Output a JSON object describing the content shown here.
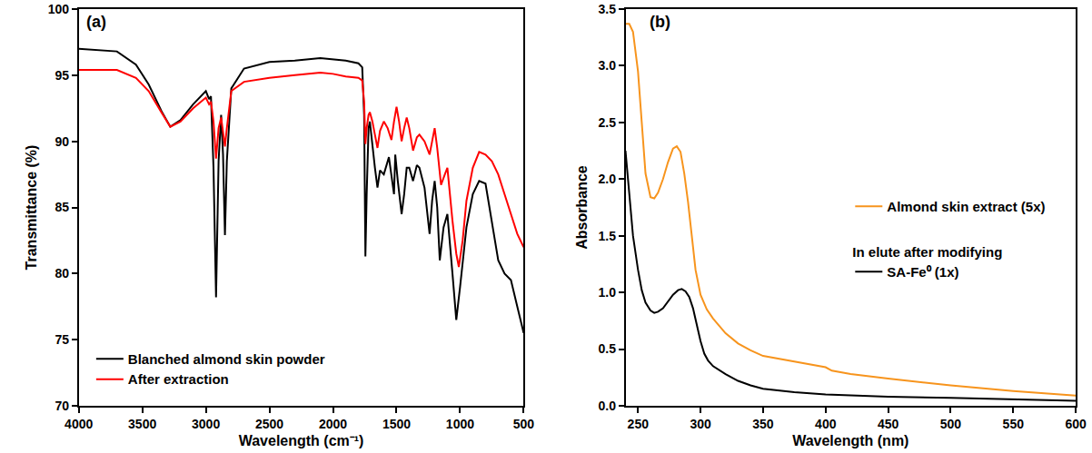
{
  "chart_data": [
    {
      "type": "line",
      "title": "(a)",
      "x_label": "Wavelength (cm⁻¹)",
      "y_label": "Transmittance (%)",
      "xlim": [
        4000,
        500
      ],
      "xticks": [
        4000,
        3500,
        3000,
        2500,
        2000,
        1500,
        1000,
        500
      ],
      "ylim": [
        70,
        100
      ],
      "yticks": [
        70,
        75,
        80,
        85,
        90,
        95,
        100
      ],
      "legend": "bottom left",
      "grid": false,
      "series": [
        {
          "name": "Blanched almond skin powder",
          "color": "#000000",
          "x": [
            4000,
            3850,
            3700,
            3550,
            3450,
            3350,
            3280,
            3200,
            3100,
            3000,
            2975,
            2960,
            2940,
            2920,
            2900,
            2880,
            2865,
            2850,
            2835,
            2800,
            2700,
            2500,
            2300,
            2100,
            2000,
            1900,
            1800,
            1770,
            1755,
            1745,
            1735,
            1720,
            1710,
            1690,
            1670,
            1650,
            1630,
            1600,
            1560,
            1520,
            1510,
            1490,
            1460,
            1440,
            1420,
            1400,
            1370,
            1340,
            1320,
            1280,
            1240,
            1220,
            1200,
            1180,
            1160,
            1130,
            1100,
            1060,
            1030,
            1000,
            950,
            900,
            850,
            800,
            750,
            700,
            650,
            600,
            550,
            500
          ],
          "values": [
            97.0,
            96.9,
            96.8,
            95.8,
            94.3,
            92.3,
            91.1,
            91.6,
            92.8,
            93.8,
            93.2,
            93.4,
            88.0,
            78.2,
            88.5,
            92.0,
            89.0,
            82.9,
            88.5,
            94.0,
            95.5,
            96.0,
            96.1,
            96.3,
            96.2,
            96.1,
            95.9,
            95.6,
            92.0,
            81.3,
            86.0,
            91.0,
            91.5,
            89.5,
            88.0,
            86.5,
            87.8,
            87.5,
            88.8,
            86.0,
            89.0,
            87.0,
            84.5,
            86.0,
            88.0,
            88.0,
            87.0,
            88.2,
            88.0,
            86.5,
            83.0,
            85.5,
            87.0,
            85.0,
            81.0,
            83.5,
            84.5,
            80.0,
            76.5,
            79.0,
            83.5,
            86.0,
            87.0,
            86.8,
            84.0,
            81.0,
            80.0,
            79.5,
            77.5,
            75.5
          ]
        },
        {
          "name": "After extraction",
          "color": "#ff0000",
          "x": [
            4000,
            3850,
            3700,
            3550,
            3450,
            3350,
            3280,
            3200,
            3100,
            3000,
            2975,
            2960,
            2940,
            2920,
            2900,
            2880,
            2865,
            2850,
            2835,
            2800,
            2700,
            2500,
            2300,
            2100,
            2000,
            1900,
            1800,
            1770,
            1755,
            1745,
            1735,
            1720,
            1710,
            1690,
            1670,
            1650,
            1630,
            1600,
            1570,
            1540,
            1520,
            1500,
            1480,
            1460,
            1440,
            1420,
            1400,
            1370,
            1340,
            1320,
            1280,
            1240,
            1220,
            1200,
            1180,
            1150,
            1120,
            1100,
            1060,
            1030,
            1010,
            980,
            950,
            900,
            850,
            800,
            750,
            700,
            650,
            600,
            550,
            500
          ],
          "values": [
            95.4,
            95.4,
            95.4,
            94.8,
            93.8,
            92.2,
            91.1,
            91.5,
            92.5,
            93.3,
            92.8,
            93.0,
            91.5,
            88.7,
            91.0,
            91.8,
            90.8,
            89.6,
            91.0,
            93.8,
            94.5,
            94.8,
            95.0,
            95.2,
            95.1,
            94.9,
            94.8,
            94.6,
            93.0,
            89.8,
            91.0,
            92.0,
            92.2,
            91.5,
            90.5,
            89.5,
            90.8,
            91.5,
            91.0,
            90.1,
            91.5,
            92.6,
            91.5,
            90.0,
            91.0,
            91.8,
            91.0,
            89.3,
            90.3,
            90.5,
            90.0,
            89.0,
            90.0,
            91.0,
            89.5,
            86.7,
            87.5,
            88.0,
            84.0,
            81.5,
            80.5,
            82.5,
            85.5,
            88.0,
            89.2,
            89.0,
            88.5,
            87.5,
            86.0,
            84.5,
            83.0,
            82.0
          ]
        }
      ]
    },
    {
      "type": "line",
      "title": "(b)",
      "x_label": "Wavelength (nm)",
      "y_label": "Absorbance",
      "xlim": [
        240,
        600
      ],
      "xticks": [
        250,
        300,
        350,
        400,
        450,
        500,
        550,
        600
      ],
      "ylim": [
        0,
        3.5
      ],
      "yticks": [
        {
          "value": 0,
          "label": "0.0"
        },
        0.5,
        {
          "value": 1,
          "label": "1.0"
        },
        1.5,
        {
          "value": 2,
          "label": "2.0"
        },
        2.5,
        {
          "value": 3,
          "label": "3.0"
        },
        3.5
      ],
      "legend": "right",
      "grid": false,
      "annotations": [
        {
          "text": "In elute after modifying"
        }
      ],
      "series": [
        {
          "name": "Almond skin extract (5x)",
          "color": "#f7941d",
          "x": [
            240,
            243,
            246,
            250,
            253,
            256,
            260,
            263,
            266,
            270,
            274,
            278,
            281,
            284,
            287,
            290,
            293,
            296,
            300,
            305,
            310,
            320,
            330,
            340,
            350,
            375,
            395,
            400,
            405,
            420,
            450,
            500,
            550,
            590,
            600
          ],
          "values": [
            3.37,
            3.37,
            3.3,
            2.95,
            2.5,
            2.05,
            1.84,
            1.83,
            1.88,
            2.0,
            2.15,
            2.27,
            2.29,
            2.24,
            2.05,
            1.8,
            1.5,
            1.2,
            0.98,
            0.85,
            0.77,
            0.64,
            0.55,
            0.49,
            0.44,
            0.39,
            0.35,
            0.34,
            0.31,
            0.28,
            0.24,
            0.18,
            0.13,
            0.1,
            0.09
          ]
        },
        {
          "name": "SA-Fe⁰ (1x)",
          "color": "#000000",
          "x": [
            240,
            243,
            246,
            250,
            253,
            256,
            260,
            263,
            266,
            270,
            274,
            278,
            282,
            285,
            288,
            291,
            294,
            297,
            300,
            303,
            306,
            310,
            320,
            330,
            340,
            350,
            375,
            400,
            450,
            500,
            550,
            600
          ],
          "values": [
            2.25,
            1.85,
            1.5,
            1.2,
            1.02,
            0.91,
            0.84,
            0.82,
            0.83,
            0.86,
            0.92,
            0.98,
            1.02,
            1.03,
            1.01,
            0.96,
            0.86,
            0.72,
            0.57,
            0.46,
            0.4,
            0.35,
            0.28,
            0.22,
            0.18,
            0.15,
            0.12,
            0.1,
            0.08,
            0.07,
            0.06,
            0.045
          ]
        }
      ]
    }
  ]
}
